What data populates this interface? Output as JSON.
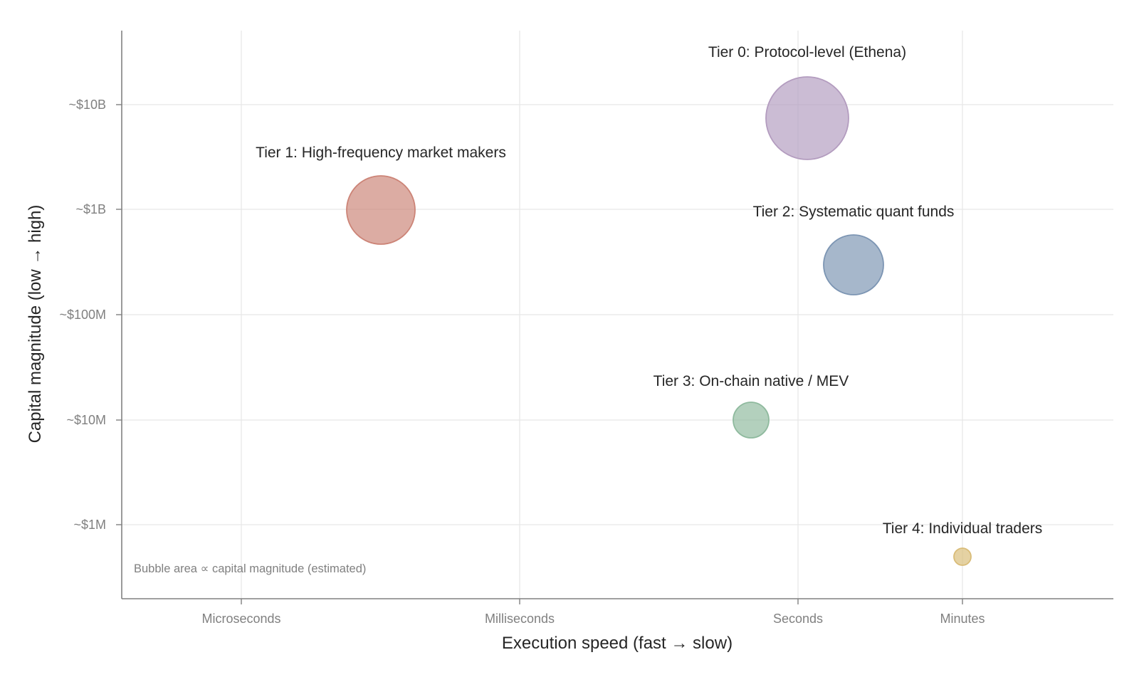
{
  "chart_data": {
    "type": "scatter",
    "subtype": "bubble",
    "title": "",
    "xlabel": "Execution speed (fast → slow)",
    "ylabel": "Capital magnitude (low → high)",
    "x_ticks": [
      "Microseconds",
      "Milliseconds",
      "Seconds",
      "Minutes"
    ],
    "y_ticks": [
      "~$1M",
      "~$10M",
      "~$100M",
      "~$1B",
      "~$10B"
    ],
    "y_scale": "log",
    "grid": true,
    "note": "Bubble area ∝ capital magnitude (estimated)",
    "points": [
      {
        "label": "Tier 0: Protocol-level (Ethena)",
        "x": "~1 s",
        "y": "~$7.5B",
        "color": "#b39cbf"
      },
      {
        "label": "Tier 1: High-frequency market makers",
        "x": "~50 µs",
        "y": "~$1B",
        "color": "#cc8477"
      },
      {
        "label": "Tier 2: Systematic quant funds",
        "x": "~5 s",
        "y": "~$300M",
        "color": "#7c95b3"
      },
      {
        "label": "Tier 3: On-chain native / MEV",
        "x": "~0.5 s",
        "y": "~$10M",
        "color": "#8fba9e"
      },
      {
        "label": "Tier 4: Individual traders",
        "x": "~1 min",
        "y": "~$500K",
        "color": "#d9bc78"
      }
    ]
  }
}
